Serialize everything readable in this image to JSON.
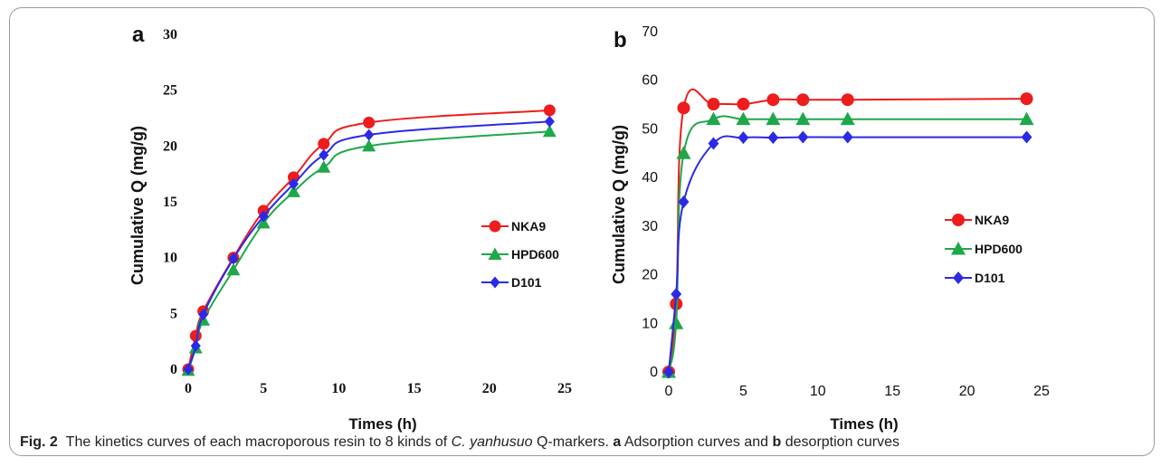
{
  "caption": {
    "fig_label": "Fig. 2",
    "text_1": "The kinetics curves of each macroporous resin to 8 kinds of ",
    "species": "C. yanhusuo",
    "text_2": " Q-markers. ",
    "panel_a": "a",
    "text_3": " Adsorption curves and ",
    "panel_b": "b",
    "text_4": " desorption curves"
  },
  "chart_data": [
    {
      "panel": "a",
      "type": "line",
      "xlabel": "Times (h)",
      "ylabel": "Cumulative Q (mg/g)",
      "xlim": [
        0,
        25
      ],
      "ylim": [
        0,
        30
      ],
      "xticks": [
        "0",
        "5",
        "10",
        "15",
        "20",
        "25"
      ],
      "yticks": [
        "0",
        "5",
        "10",
        "15",
        "20",
        "25",
        "30"
      ],
      "tick_font": "serif",
      "legend_position": "right",
      "grid": false,
      "series": [
        {
          "name": "NKA9",
          "color": "#ee1c1c",
          "marker": "circle",
          "x": [
            0,
            0.5,
            1,
            3,
            5,
            7,
            9,
            12,
            24
          ],
          "y": [
            0,
            3.0,
            5.2,
            10.0,
            14.2,
            17.2,
            20.2,
            22.1,
            23.2
          ]
        },
        {
          "name": "HPD600",
          "color": "#1fa84a",
          "marker": "triangle",
          "x": [
            0,
            0.5,
            1,
            3,
            5,
            7,
            9,
            12,
            24
          ],
          "y": [
            -0.1,
            1.9,
            4.4,
            8.9,
            13.1,
            15.9,
            18.1,
            20.0,
            21.3
          ]
        },
        {
          "name": "D101",
          "color": "#2a2ae6",
          "marker": "diamond",
          "x": [
            0,
            0.5,
            1,
            3,
            5,
            7,
            9,
            12,
            24
          ],
          "y": [
            0,
            2.1,
            4.9,
            9.9,
            13.7,
            16.6,
            19.2,
            21.0,
            22.2
          ]
        }
      ]
    },
    {
      "panel": "b",
      "type": "line",
      "xlabel": "Times (h)",
      "ylabel": "Cumulative Q (mg/g)",
      "xlim": [
        0,
        25
      ],
      "ylim": [
        0,
        70
      ],
      "xticks": [
        "0",
        "5",
        "10",
        "15",
        "20",
        "25"
      ],
      "yticks": [
        "0",
        "10",
        "20",
        "30",
        "40",
        "50",
        "60",
        "70"
      ],
      "tick_font": "sans",
      "legend_position": "right",
      "grid": false,
      "series": [
        {
          "name": "NKA9",
          "color": "#ee1c1c",
          "marker": "circle",
          "x": [
            0,
            0.5,
            1,
            3,
            5,
            7,
            9,
            12,
            24
          ],
          "y": [
            0,
            14.0,
            54.3,
            55.1,
            55.1,
            56.0,
            56.0,
            56.0,
            56.2
          ]
        },
        {
          "name": "HPD600",
          "color": "#1fa84a",
          "marker": "triangle",
          "x": [
            0,
            0.5,
            1,
            3,
            5,
            7,
            9,
            12,
            24
          ],
          "y": [
            0,
            10.0,
            45.0,
            52.0,
            52.0,
            52.0,
            52.0,
            52.0,
            52.0
          ]
        },
        {
          "name": "D101",
          "color": "#2a2ae6",
          "marker": "diamond",
          "x": [
            0,
            0.5,
            1,
            3,
            5,
            7,
            9,
            12,
            24
          ],
          "y": [
            0,
            16.0,
            35.0,
            47.0,
            48.2,
            48.2,
            48.3,
            48.3,
            48.3
          ]
        }
      ]
    }
  ]
}
